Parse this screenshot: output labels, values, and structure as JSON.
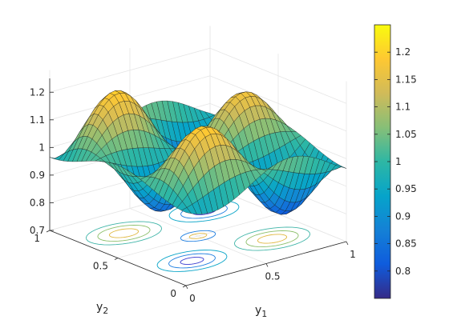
{
  "chart_data": {
    "type": "surface",
    "title": "",
    "xlabel": "y",
    "xlabel_sub": "1",
    "ylabel": "y",
    "ylabel_sub": "2",
    "zlabel": "",
    "xlim": [
      0,
      1
    ],
    "ylim": [
      0,
      1
    ],
    "zlim": [
      0.7,
      1.25
    ],
    "x_ticks": [
      "0",
      "0.5",
      "1"
    ],
    "y_ticks": [
      "0",
      "0.5",
      "1"
    ],
    "z_ticks": [
      "0.7",
      "0.8",
      "0.9",
      "1",
      "1.1",
      "1.2"
    ],
    "colorbar": {
      "colormap": "parula",
      "range": [
        0.75,
        1.25
      ],
      "ticks": [
        "0.8",
        "0.85",
        "0.9",
        "0.95",
        "1",
        "1.05",
        "1.1",
        "1.15",
        "1.2"
      ]
    },
    "grid": true,
    "contour_projection": "floor",
    "surface_description": {
      "grid_x": [
        0,
        0.0333,
        0.0667,
        0.1,
        0.1333,
        0.1667,
        0.2,
        0.2333,
        0.2667,
        0.3,
        0.3333,
        0.3667,
        0.4,
        0.4333,
        0.4667,
        0.5,
        0.5333,
        0.5667,
        0.6,
        0.6333,
        0.6667,
        0.7,
        0.7333,
        0.7667,
        0.8,
        0.8333,
        0.8667,
        0.9,
        0.9333,
        0.9667,
        1
      ],
      "grid_y": [
        0,
        0.0333,
        0.0667,
        0.1,
        0.1333,
        0.1667,
        0.2,
        0.2333,
        0.2667,
        0.3,
        0.3333,
        0.3667,
        0.4,
        0.4333,
        0.4667,
        0.5,
        0.5333,
        0.5667,
        0.6,
        0.6333,
        0.6667,
        0.7,
        0.7333,
        0.7667,
        0.8,
        0.8333,
        0.8667,
        0.9,
        0.9333,
        0.9667,
        1
      ],
      "approximate_function": "1 + 0.25*sin(2*pi*y1)*sin(4*pi*y2) blended with 0.25*cos(2*pi*(y1-y2))*exp-like gaussian ridge",
      "z_min": 0.75,
      "z_max": 1.25
    }
  }
}
